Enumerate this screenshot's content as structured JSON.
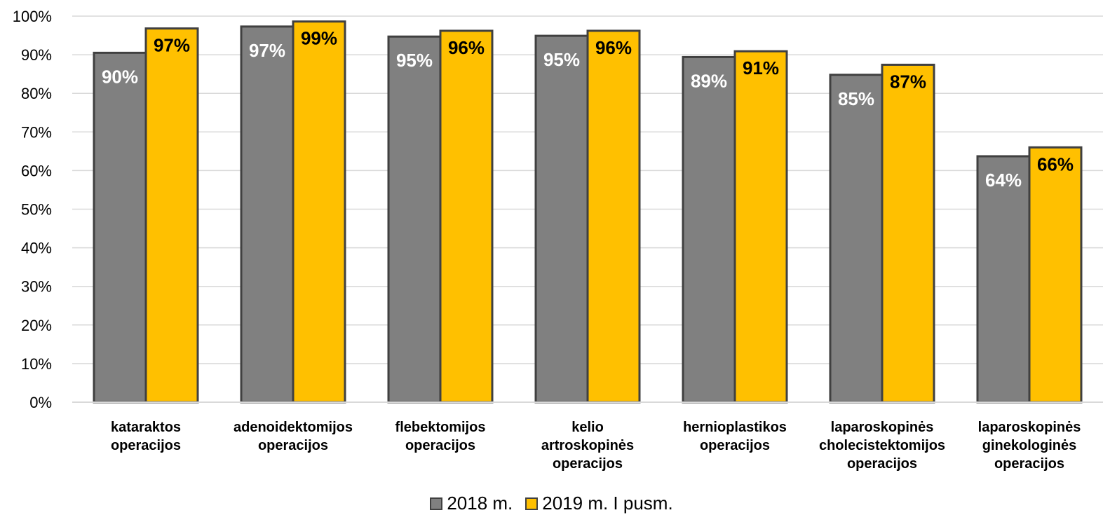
{
  "chart_data": {
    "type": "bar",
    "title": "",
    "xlabel": "",
    "ylabel": "",
    "ylim": [
      0,
      100
    ],
    "ytick_step": 10,
    "ytick_suffix": "%",
    "grid": true,
    "legend_position": "bottom",
    "categories": [
      [
        "kataraktos",
        "operacijos"
      ],
      [
        "adenoidektomijos",
        "operacijos"
      ],
      [
        "flebektomijos",
        "operacijos"
      ],
      [
        "kelio",
        "artroskopinės",
        "operacijos"
      ],
      [
        "hernioplastikos",
        "operacijos"
      ],
      [
        "laparoskopinės",
        "cholecistektomijos",
        "operacijos"
      ],
      [
        "laparoskopinės",
        "ginekologinės",
        "operacijos"
      ]
    ],
    "series": [
      {
        "name": "2018 m.",
        "color": "#808080",
        "label_color": "#ffffff",
        "values": [
          90.5,
          97.3,
          94.7,
          94.9,
          89.4,
          84.8,
          63.7
        ],
        "labels": [
          "90%",
          "97%",
          "95%",
          "95%",
          "89%",
          "85%",
          "64%"
        ]
      },
      {
        "name": "2019 m. I pusm.",
        "color": "#ffc000",
        "label_color": "#000000",
        "values": [
          96.8,
          98.6,
          96.2,
          96.2,
          90.9,
          87.4,
          66.0
        ],
        "labels": [
          "97%",
          "99%",
          "96%",
          "96%",
          "91%",
          "87%",
          "66%"
        ]
      }
    ]
  }
}
